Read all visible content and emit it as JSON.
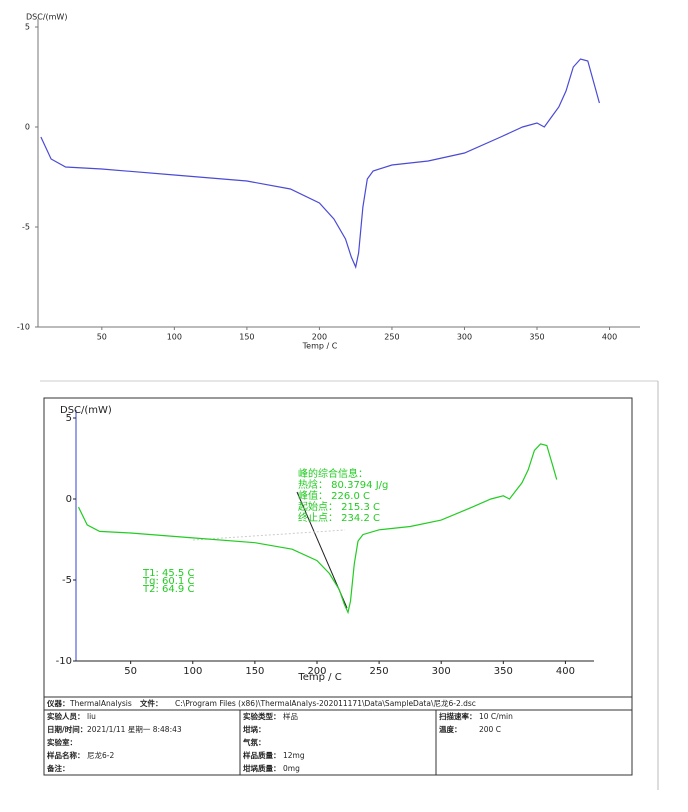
{
  "chart_data": [
    {
      "type": "line",
      "ylabel": "DSC/(mW)",
      "xlabel": "Temp / C",
      "color": "#4a4ad6",
      "x": [
        8,
        15,
        25,
        50,
        100,
        150,
        180,
        200,
        210,
        218,
        222,
        225,
        227,
        230,
        233,
        237,
        250,
        275,
        300,
        325,
        340,
        350,
        355,
        360,
        365,
        370,
        375,
        380,
        385,
        390,
        393
      ],
      "values": [
        -0.5,
        -1.6,
        -2.0,
        -2.1,
        -2.4,
        -2.7,
        -3.1,
        -3.8,
        -4.6,
        -5.6,
        -6.5,
        -7.0,
        -6.3,
        -4.0,
        -2.6,
        -2.2,
        -1.9,
        -1.7,
        -1.3,
        -0.5,
        0.0,
        0.2,
        0.0,
        0.5,
        1.0,
        1.8,
        3.0,
        3.4,
        3.3,
        2.0,
        1.2
      ],
      "xlim": [
        6,
        421
      ],
      "ylim": [
        -10,
        5
      ],
      "xticks": [
        50,
        100,
        150,
        200,
        250,
        300,
        350,
        400
      ],
      "yticks": [
        5,
        0,
        -5,
        -10
      ]
    },
    {
      "type": "line",
      "ylabel": "DSC/(mW)",
      "xlabel": "Temp / C",
      "color": "#22cc22",
      "x": [
        8,
        15,
        25,
        50,
        100,
        150,
        180,
        200,
        210,
        218,
        222,
        225,
        227,
        230,
        233,
        237,
        250,
        275,
        300,
        325,
        340,
        350,
        355,
        360,
        365,
        370,
        375,
        380,
        385,
        390,
        393
      ],
      "values": [
        -0.5,
        -1.6,
        -2.0,
        -2.1,
        -2.4,
        -2.7,
        -3.1,
        -3.8,
        -4.6,
        -5.6,
        -6.5,
        -7.0,
        -6.3,
        -4.0,
        -2.6,
        -2.2,
        -1.9,
        -1.7,
        -1.3,
        -0.5,
        0.0,
        0.2,
        0.0,
        0.5,
        1.0,
        1.8,
        3.0,
        3.4,
        3.3,
        2.0,
        1.2
      ],
      "xlim": [
        6,
        423
      ],
      "ylim": [
        -10,
        5
      ],
      "xticks": [
        50,
        100,
        150,
        200,
        250,
        300,
        350,
        400
      ],
      "yticks": [
        5,
        0,
        -5,
        -10
      ],
      "annotations": [
        "峰的综合信息：",
        "热焓： 80.3794 J/g",
        "峰值： 226.0 C",
        "起始点： 215.3 C",
        "终止点： 234.2 C",
        "T1:  45.5 C",
        "Tg:  60.1 C",
        "T2:  64.9 C"
      ]
    }
  ],
  "table": {
    "rows": [
      [
        {
          "label": "仪器：",
          "value": "ThermalAnalysis"
        },
        {
          "label": "文件：",
          "value": "C:\\Program Files (x86)\\ThermalAnalys-202011171\\Data\\SampleData\\尼龙6-2.dsc"
        }
      ]
    ],
    "columns": [
      [
        {
          "label": "实验人员：",
          "value": "liu"
        },
        {
          "label": "日期/时间：",
          "value": "2021/1/11 星期一 8:48:43"
        },
        {
          "label": "实验室："
        },
        {
          "label": "样品名称：",
          "value": "尼龙6-2"
        },
        {
          "label": "备注："
        }
      ],
      [
        {
          "label": "实验类型：",
          "value": "样品"
        },
        {
          "label": "坩埚："
        },
        {
          "label": "气氛："
        },
        {
          "label": "样品质量：",
          "value": "12mg"
        },
        {
          "label": "坩埚质量：",
          "value": "0mg"
        }
      ],
      [
        {
          "label": "扫描速率：",
          "value": "10 C/min"
        },
        {
          "label": "温度：",
          "value": "200 C"
        }
      ]
    ]
  }
}
